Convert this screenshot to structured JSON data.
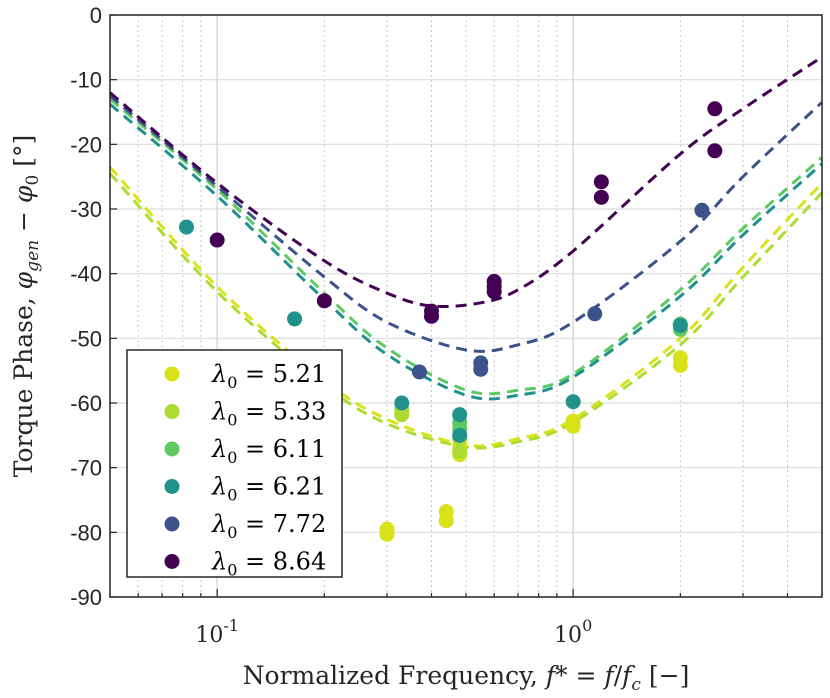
{
  "chart_data": {
    "type": "scatter",
    "title": "",
    "xlabel": "Normalized Frequency, f* = f/f_c [−]",
    "ylabel": "Torque Phase, φ_gen − φ_0 [°]",
    "xscale": "log",
    "xlim": [
      0.05,
      5
    ],
    "ylim": [
      -90,
      0
    ],
    "grid": true,
    "legend_position": "bottom-left",
    "x_ticks": [
      {
        "value": 0.1,
        "base": "10",
        "exp": "-1"
      },
      {
        "value": 1,
        "base": "10",
        "exp": "0"
      }
    ],
    "y_ticks": [
      {
        "value": 0,
        "label": "0"
      },
      {
        "value": -10,
        "label": "-10"
      },
      {
        "value": -20,
        "label": "-20"
      },
      {
        "value": -30,
        "label": "-30"
      },
      {
        "value": -40,
        "label": "-40"
      },
      {
        "value": -50,
        "label": "-50"
      },
      {
        "value": -60,
        "label": "-60"
      },
      {
        "value": -70,
        "label": "-70"
      },
      {
        "value": -80,
        "label": "-80"
      },
      {
        "value": -90,
        "label": "-90"
      }
    ],
    "series": [
      {
        "name": "λ0 = 5.21",
        "legend_value": "5.21",
        "color": "#d8e219",
        "points": [
          [
            0.3,
            -79.5
          ],
          [
            0.3,
            -80.3
          ],
          [
            0.44,
            -76.8
          ],
          [
            0.44,
            -78.2
          ],
          [
            0.48,
            -66.5
          ],
          [
            0.48,
            -68.0
          ],
          [
            1.0,
            -62.8
          ],
          [
            1.0,
            -63.6
          ],
          [
            2.0,
            -53.0
          ],
          [
            2.0,
            -54.2
          ]
        ],
        "fit": [
          [
            0.05,
            -23.5
          ],
          [
            0.1,
            -42.0
          ],
          [
            0.2,
            -56.5
          ],
          [
            0.3,
            -62.5
          ],
          [
            0.5,
            -66.5
          ],
          [
            0.7,
            -65.5
          ],
          [
            1.0,
            -62.5
          ],
          [
            2.0,
            -50.0
          ],
          [
            3.0,
            -39.0
          ],
          [
            5.0,
            -26.0
          ]
        ]
      },
      {
        "name": "λ0 = 5.33",
        "legend_value": "5.33",
        "color": "#addc30",
        "points": [
          [
            0.33,
            -61.0
          ],
          [
            0.33,
            -61.8
          ],
          [
            0.48,
            -67.5
          ],
          [
            0.48,
            -65.5
          ]
        ],
        "fit": [
          [
            0.05,
            -24.5
          ],
          [
            0.1,
            -42.8
          ],
          [
            0.2,
            -57.2
          ],
          [
            0.3,
            -63.2
          ],
          [
            0.5,
            -66.8
          ],
          [
            0.7,
            -66.0
          ],
          [
            1.0,
            -63.0
          ],
          [
            2.0,
            -51.0
          ],
          [
            3.0,
            -40.5
          ],
          [
            5.0,
            -27.5
          ]
        ]
      },
      {
        "name": "λ0 = 6.11",
        "legend_value": "6.11",
        "color": "#5ec962",
        "points": [
          [
            0.48,
            -63.0
          ],
          [
            0.48,
            -64.0
          ],
          [
            2.0,
            -47.8
          ],
          [
            2.0,
            -48.6
          ]
        ],
        "fit": [
          [
            0.05,
            -13.0
          ],
          [
            0.1,
            -27.0
          ],
          [
            0.2,
            -43.0
          ],
          [
            0.3,
            -51.5
          ],
          [
            0.5,
            -58.0
          ],
          [
            0.7,
            -58.0
          ],
          [
            1.0,
            -55.5
          ],
          [
            2.0,
            -42.5
          ],
          [
            3.0,
            -33.0
          ],
          [
            5.0,
            -22.0
          ]
        ]
      },
      {
        "name": "λ0 = 6.21",
        "legend_value": "6.21",
        "color": "#21918c",
        "points": [
          [
            0.082,
            -32.8
          ],
          [
            0.165,
            -47.0
          ],
          [
            0.33,
            -60.0
          ],
          [
            0.48,
            -61.8
          ],
          [
            0.48,
            -65.0
          ],
          [
            1.0,
            -59.8
          ],
          [
            2.0,
            -48.0
          ]
        ],
        "fit": [
          [
            0.05,
            -13.8
          ],
          [
            0.1,
            -28.0
          ],
          [
            0.2,
            -44.0
          ],
          [
            0.3,
            -52.5
          ],
          [
            0.5,
            -58.8
          ],
          [
            0.7,
            -58.8
          ],
          [
            1.0,
            -56.0
          ],
          [
            2.0,
            -43.5
          ],
          [
            3.0,
            -34.0
          ],
          [
            5.0,
            -23.0
          ]
        ]
      },
      {
        "name": "λ0 = 7.72",
        "legend_value": "7.72",
        "color": "#3b528b",
        "points": [
          [
            0.37,
            -55.2
          ],
          [
            0.55,
            -53.8
          ],
          [
            0.55,
            -54.8
          ],
          [
            1.15,
            -46.2
          ],
          [
            2.3,
            -30.2
          ]
        ],
        "fit": [
          [
            0.05,
            -12.5
          ],
          [
            0.1,
            -26.5
          ],
          [
            0.2,
            -40.5
          ],
          [
            0.3,
            -47.5
          ],
          [
            0.5,
            -51.8
          ],
          [
            0.7,
            -51.0
          ],
          [
            1.0,
            -47.5
          ],
          [
            2.0,
            -35.0
          ],
          [
            3.0,
            -25.0
          ],
          [
            5.0,
            -13.5
          ]
        ]
      },
      {
        "name": "λ0 = 8.64",
        "legend_value": "8.64",
        "color": "#440154",
        "points": [
          [
            0.1,
            -34.8
          ],
          [
            0.2,
            -44.2
          ],
          [
            0.4,
            -45.8
          ],
          [
            0.4,
            -46.6
          ],
          [
            0.6,
            -41.2
          ],
          [
            0.6,
            -42.0
          ],
          [
            0.6,
            -42.8
          ],
          [
            1.2,
            -25.8
          ],
          [
            1.2,
            -28.2
          ],
          [
            2.5,
            -14.5
          ],
          [
            2.5,
            -21.0
          ]
        ],
        "fit": [
          [
            0.05,
            -12.0
          ],
          [
            0.1,
            -26.0
          ],
          [
            0.2,
            -38.0
          ],
          [
            0.3,
            -43.0
          ],
          [
            0.4,
            -45.0
          ],
          [
            0.55,
            -44.5
          ],
          [
            0.7,
            -42.5
          ],
          [
            1.0,
            -36.5
          ],
          [
            2.0,
            -21.5
          ],
          [
            3.0,
            -14.5
          ],
          [
            5.0,
            -6.5
          ]
        ]
      }
    ]
  }
}
